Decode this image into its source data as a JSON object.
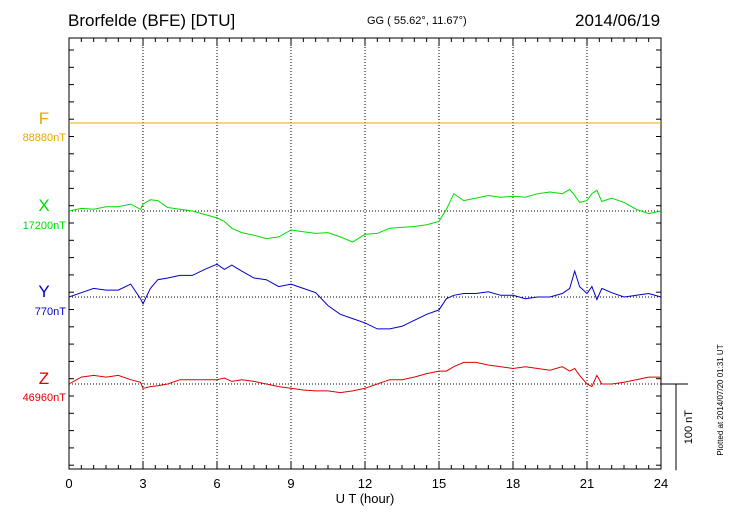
{
  "header": {
    "title": "Brorfelde (BFE)  [DTU]",
    "coords": "GG ( 55.62°,  11.67°)",
    "date": "2014/06/19"
  },
  "scale_bar_label": "100 nT",
  "plot_note": "Plotted at 2014/07/20 01:31  UT",
  "colors": {
    "F": "#e8a800",
    "X": "#00dd00",
    "Y": "#0000cc",
    "Z": "#dd0000",
    "grid": "#000000"
  },
  "chart_data": {
    "type": "line",
    "xlabel": "U T (hour)",
    "xlim": [
      0,
      24
    ],
    "x_ticks": [
      "0",
      "3",
      "6",
      "9",
      "12",
      "15",
      "18",
      "21",
      "24"
    ],
    "components": [
      {
        "name": "F",
        "base_label": "88880nT",
        "color": "#e8a800"
      },
      {
        "name": "X",
        "base_label": "17200nT",
        "color": "#00dd00"
      },
      {
        "name": "Y",
        "base_label": "770nT",
        "color": "#0000cc"
      },
      {
        "name": "Z",
        "base_label": "46960nT",
        "color": "#dd0000"
      }
    ],
    "x": [
      0,
      0.5,
      1,
      1.5,
      2,
      2.5,
      2.9,
      3,
      3.3,
      3.6,
      4,
      4.5,
      5,
      5.5,
      6,
      6.3,
      6.6,
      7,
      7.5,
      8,
      8.5,
      9,
      9.5,
      10,
      10.5,
      11,
      11.5,
      12,
      12.5,
      13,
      13.5,
      14,
      14.5,
      15,
      15.3,
      15.6,
      16,
      16.5,
      17,
      17.5,
      18,
      18.5,
      19,
      19.5,
      20,
      20.3,
      20.5,
      20.7,
      21,
      21.2,
      21.4,
      21.6,
      22,
      22.5,
      23,
      23.5,
      24
    ],
    "series": [
      {
        "name": "F",
        "values": [
          0,
          0,
          0,
          0,
          0,
          0,
          0,
          0,
          0,
          0,
          0,
          0,
          0,
          0,
          0,
          0,
          0,
          0,
          0,
          0,
          0,
          0,
          0,
          0,
          0,
          0,
          0,
          0,
          0,
          0,
          0,
          0,
          0,
          0,
          0,
          0,
          0,
          0,
          0,
          0,
          0,
          0,
          0,
          0,
          0,
          0,
          0,
          0,
          0,
          0,
          0,
          0,
          0,
          0,
          0,
          0,
          0
        ]
      },
      {
        "name": "X",
        "values": [
          0,
          3,
          2,
          5,
          5,
          8,
          2,
          8,
          13,
          12,
          4,
          2,
          0,
          -4,
          -8,
          -12,
          -20,
          -25,
          -28,
          -32,
          -30,
          -22,
          -24,
          -26,
          -25,
          -30,
          -36,
          -27,
          -26,
          -20,
          -19,
          -18,
          -16,
          -12,
          2,
          20,
          12,
          15,
          18,
          16,
          17,
          16,
          20,
          22,
          20,
          25,
          18,
          10,
          12,
          20,
          24,
          11,
          15,
          10,
          2,
          -3,
          0
        ]
      },
      {
        "name": "Y",
        "values": [
          0,
          5,
          10,
          8,
          8,
          15,
          -2,
          -8,
          10,
          20,
          22,
          25,
          25,
          32,
          38,
          32,
          37,
          30,
          22,
          20,
          12,
          15,
          10,
          5,
          -10,
          -20,
          -25,
          -30,
          -37,
          -37,
          -34,
          -27,
          -20,
          -15,
          -2,
          2,
          4,
          4,
          6,
          2,
          2,
          -2,
          0,
          0,
          4,
          10,
          30,
          12,
          4,
          12,
          -3,
          10,
          5,
          0,
          2,
          4,
          0
        ]
      },
      {
        "name": "Z",
        "values": [
          0,
          8,
          10,
          8,
          10,
          5,
          2,
          -5,
          -3,
          -2,
          0,
          5,
          5,
          5,
          5,
          7,
          3,
          5,
          3,
          0,
          -3,
          -5,
          -7,
          -8,
          -8,
          -10,
          -8,
          -5,
          0,
          5,
          5,
          8,
          12,
          15,
          15,
          20,
          25,
          25,
          22,
          20,
          18,
          20,
          18,
          16,
          20,
          15,
          18,
          10,
          0,
          -3,
          10,
          0,
          0,
          2,
          5,
          8,
          8
        ]
      }
    ]
  }
}
